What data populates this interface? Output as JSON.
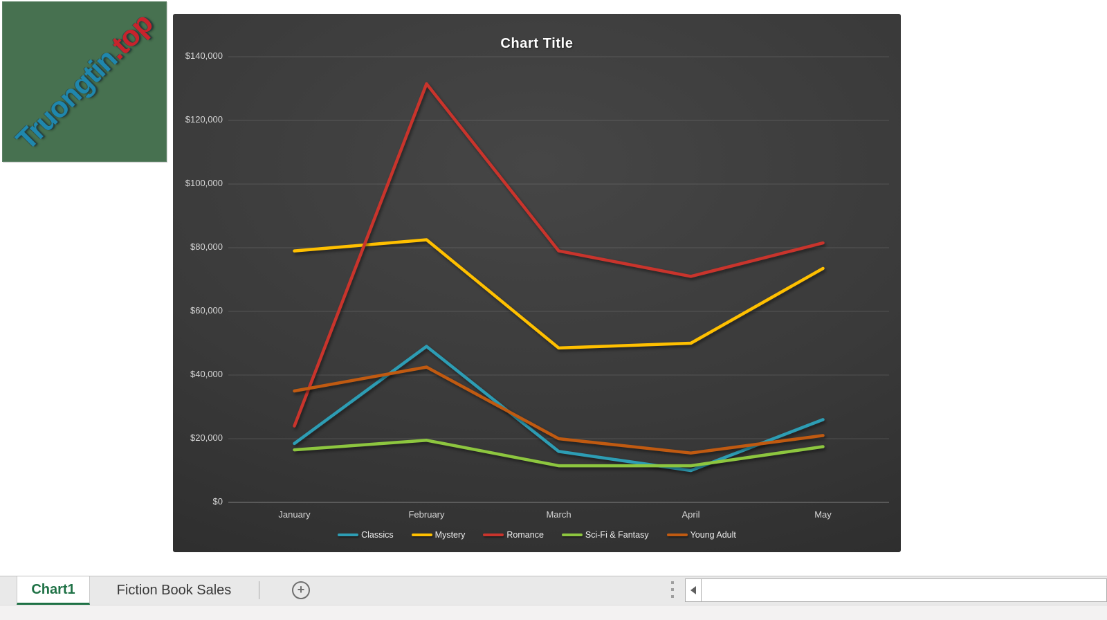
{
  "watermark": {
    "text_main": "Truongtin",
    "text_suffix": ".top",
    "bg_color": "#477150"
  },
  "chart_data": {
    "type": "line",
    "title": "Chart Title",
    "categories": [
      "January",
      "February",
      "March",
      "April",
      "May"
    ],
    "series": [
      {
        "name": "Classics",
        "color": "#2d9db4",
        "values": [
          18500,
          49000,
          16000,
          10000,
          26000
        ]
      },
      {
        "name": "Mystery",
        "color": "#ffc000",
        "values": [
          79000,
          82500,
          48500,
          50000,
          73500
        ]
      },
      {
        "name": "Romance",
        "color": "#c9342c",
        "values": [
          24000,
          131500,
          79000,
          71000,
          81500
        ]
      },
      {
        "name": "Sci-Fi & Fantasy",
        "color": "#8dc63f",
        "values": [
          16500,
          19500,
          11500,
          11500,
          17500
        ]
      },
      {
        "name": "Young Adult",
        "color": "#c05a11",
        "values": [
          35000,
          42500,
          20000,
          15500,
          21000
        ]
      }
    ],
    "ylim": [
      0,
      140000
    ],
    "ytick_step": 20000,
    "ytick_labels": [
      "$0",
      "$20,000",
      "$40,000",
      "$60,000",
      "$80,000",
      "$100,000",
      "$120,000",
      "$140,000"
    ],
    "grid": true,
    "legend_position": "bottom",
    "background": "dark-gradient"
  },
  "sheet_bar": {
    "tabs": [
      {
        "label": "Chart1",
        "active": true
      },
      {
        "label": "Fiction Book Sales",
        "active": false
      }
    ],
    "add_sheet_label": "+"
  },
  "colors": {
    "excel_green": "#1e7145",
    "chart_bg_edge": "#292929",
    "chart_bg_center": "#464646"
  }
}
